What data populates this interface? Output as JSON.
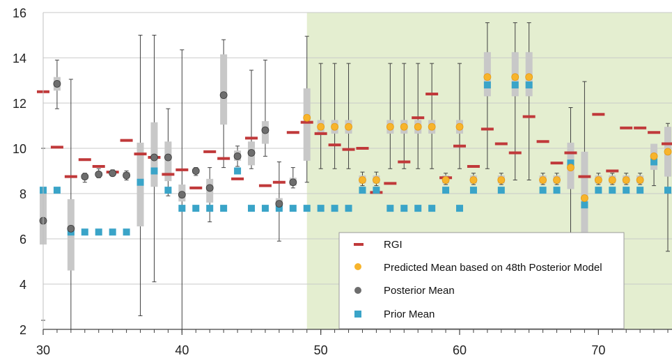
{
  "chart_data": {
    "type": "scatter",
    "xlim": [
      30,
      75.3
    ],
    "ylim": [
      2,
      16
    ],
    "x_ticks": [
      "30",
      "40",
      "50",
      "60",
      "70"
    ],
    "y_ticks": [
      "2",
      "4",
      "6",
      "8",
      "10",
      "12",
      "14",
      "16"
    ],
    "grid": "horizontal",
    "shaded_region": {
      "x_from": 49,
      "x_to": 75.3,
      "color": "#e4eed0"
    },
    "legend_position": "bottom-right",
    "colors": {
      "rgi": "#c0393a",
      "predicted": "#f7b42c",
      "posterior": "#6d6d6d",
      "prior": "#3aa4c8",
      "box": "#c8c8c8",
      "whisker": "#404040"
    },
    "legend": [
      {
        "label": "RGI",
        "marker": "dash",
        "color": "#c0393a"
      },
      {
        "label": "Predicted Mean based on 48th Posterior Model",
        "marker": "circle",
        "color": "#f7b42c"
      },
      {
        "label": "Posterior Mean",
        "marker": "circle",
        "color": "#6d6d6d"
      },
      {
        "label": "Prior Mean",
        "marker": "square",
        "color": "#3aa4c8"
      }
    ],
    "rgi": [
      [
        30,
        12.5
      ],
      [
        31,
        10.05
      ],
      [
        32,
        8.75
      ],
      [
        33,
        9.5
      ],
      [
        34,
        9.2
      ],
      [
        35,
        8.95
      ],
      [
        36,
        10.35
      ],
      [
        37,
        9.75
      ],
      [
        38,
        9.6
      ],
      [
        39,
        8.85
      ],
      [
        40,
        9.05
      ],
      [
        41,
        8.25
      ],
      [
        42,
        9.85
      ],
      [
        43,
        9.55
      ],
      [
        44,
        8.65
      ],
      [
        45,
        10.45
      ],
      [
        46,
        8.35
      ],
      [
        47,
        8.5
      ],
      [
        48,
        10.7
      ],
      [
        49,
        11.15
      ],
      [
        50,
        10.65
      ],
      [
        51,
        10.15
      ],
      [
        52,
        9.95
      ],
      [
        53,
        10.0
      ],
      [
        54,
        8.05
      ],
      [
        55,
        8.45
      ],
      [
        56,
        9.4
      ],
      [
        57,
        11.35
      ],
      [
        58,
        12.4
      ],
      [
        59,
        8.7
      ],
      [
        60,
        10.1
      ],
      [
        61,
        9.2
      ],
      [
        62,
        10.85
      ],
      [
        63,
        10.2
      ],
      [
        64,
        9.8
      ],
      [
        65,
        11.4
      ],
      [
        66,
        10.3
      ],
      [
        67,
        9.35
      ],
      [
        68,
        9.8
      ],
      [
        69,
        8.75
      ],
      [
        70,
        11.5
      ],
      [
        71,
        9.0
      ],
      [
        72,
        10.9
      ],
      [
        73,
        10.9
      ],
      [
        74,
        10.7
      ],
      [
        75,
        10.2
      ]
    ],
    "prior_mean": [
      [
        30,
        8.15
      ],
      [
        31,
        8.15
      ],
      [
        32,
        6.3
      ],
      [
        33,
        6.3
      ],
      [
        34,
        6.3
      ],
      [
        35,
        6.3
      ],
      [
        36,
        6.3
      ],
      [
        37,
        8.5
      ],
      [
        38,
        9.0
      ],
      [
        39,
        8.15
      ],
      [
        40,
        7.35
      ],
      [
        41,
        7.35
      ],
      [
        42,
        7.35
      ],
      [
        43,
        7.35
      ],
      [
        44,
        9.0
      ],
      [
        45,
        7.35
      ],
      [
        46,
        7.35
      ],
      [
        47,
        7.35
      ],
      [
        48,
        7.35
      ],
      [
        49,
        7.35
      ],
      [
        50,
        7.35
      ],
      [
        51,
        7.35
      ],
      [
        52,
        7.35
      ],
      [
        53,
        8.15
      ],
      [
        54,
        8.15
      ],
      [
        55,
        7.35
      ],
      [
        56,
        7.35
      ],
      [
        57,
        7.35
      ],
      [
        58,
        7.35
      ],
      [
        59,
        8.15
      ],
      [
        60,
        7.35
      ],
      [
        61,
        8.15
      ],
      [
        62,
        12.8
      ],
      [
        63,
        8.15
      ],
      [
        64,
        12.8
      ],
      [
        65,
        12.8
      ],
      [
        66,
        8.15
      ],
      [
        67,
        8.15
      ],
      [
        68,
        9.35
      ],
      [
        69,
        7.5
      ],
      [
        70,
        8.15
      ],
      [
        71,
        8.15
      ],
      [
        72,
        8.15
      ],
      [
        73,
        8.15
      ],
      [
        74,
        9.4
      ],
      [
        75,
        8.15
      ]
    ],
    "posterior_mean": [
      [
        30,
        6.8
      ],
      [
        31,
        12.85
      ],
      [
        32,
        6.45
      ],
      [
        33,
        8.75
      ],
      [
        34,
        8.85
      ],
      [
        35,
        8.9
      ],
      [
        36,
        8.8
      ],
      [
        38,
        9.6
      ],
      [
        39,
        9.6
      ],
      [
        40,
        7.95
      ],
      [
        41,
        9.0
      ],
      [
        42,
        8.25
      ],
      [
        43,
        12.35
      ],
      [
        44,
        9.65
      ],
      [
        45,
        9.8
      ],
      [
        46,
        10.8
      ],
      [
        47,
        7.55
      ],
      [
        48,
        8.5
      ]
    ],
    "predicted_mean": [
      [
        49,
        11.35
      ],
      [
        50,
        10.95
      ],
      [
        51,
        10.95
      ],
      [
        52,
        10.95
      ],
      [
        53,
        8.6
      ],
      [
        54,
        8.6
      ],
      [
        55,
        10.95
      ],
      [
        56,
        10.95
      ],
      [
        57,
        10.95
      ],
      [
        58,
        10.95
      ],
      [
        59,
        8.6
      ],
      [
        60,
        10.95
      ],
      [
        61,
        8.6
      ],
      [
        62,
        13.15
      ],
      [
        63,
        8.6
      ],
      [
        64,
        13.15
      ],
      [
        65,
        13.15
      ],
      [
        66,
        8.6
      ],
      [
        67,
        8.6
      ],
      [
        68,
        9.15
      ],
      [
        69,
        7.8
      ],
      [
        70,
        8.6
      ],
      [
        71,
        8.6
      ],
      [
        72,
        8.6
      ],
      [
        73,
        8.6
      ],
      [
        74,
        9.65
      ],
      [
        75,
        9.85
      ]
    ],
    "whiskers": [
      [
        30,
        2.4,
        10.0
      ],
      [
        31,
        11.75,
        13.9
      ],
      [
        32,
        2.0,
        13.05
      ],
      [
        33,
        8.5,
        8.9
      ],
      [
        34,
        8.7,
        9.1
      ],
      [
        35,
        8.8,
        9.05
      ],
      [
        36,
        8.6,
        9.0
      ],
      [
        37,
        2.6,
        15.0
      ],
      [
        38,
        4.1,
        15.0
      ],
      [
        39,
        7.9,
        11.75
      ],
      [
        40,
        2.0,
        14.35
      ],
      [
        41,
        8.8,
        9.15
      ],
      [
        42,
        6.75,
        9.15
      ],
      [
        43,
        9.15,
        14.8
      ],
      [
        44,
        9.2,
        10.1
      ],
      [
        45,
        9.1,
        13.45
      ],
      [
        46,
        9.65,
        13.9
      ],
      [
        47,
        5.9,
        9.4
      ],
      [
        48,
        8.25,
        9.15
      ],
      [
        49,
        8.5,
        14.95
      ],
      [
        50,
        9.1,
        13.75
      ],
      [
        51,
        9.1,
        13.75
      ],
      [
        52,
        9.1,
        13.75
      ],
      [
        53,
        8.35,
        8.95
      ],
      [
        54,
        8.35,
        8.95
      ],
      [
        55,
        9.1,
        13.75
      ],
      [
        56,
        9.1,
        13.75
      ],
      [
        57,
        9.1,
        13.75
      ],
      [
        58,
        9.1,
        13.75
      ],
      [
        59,
        8.4,
        8.9
      ],
      [
        60,
        9.1,
        13.75
      ],
      [
        61,
        8.4,
        8.9
      ],
      [
        62,
        9.1,
        15.55
      ],
      [
        63,
        8.4,
        8.9
      ],
      [
        64,
        8.6,
        15.55
      ],
      [
        65,
        8.6,
        15.55
      ],
      [
        66,
        8.4,
        8.9
      ],
      [
        67,
        8.4,
        8.9
      ],
      [
        68,
        5.0,
        11.8
      ],
      [
        69,
        4.0,
        12.95
      ],
      [
        70,
        8.4,
        8.9
      ],
      [
        71,
        8.4,
        8.9
      ],
      [
        72,
        8.4,
        8.9
      ],
      [
        73,
        8.4,
        8.9
      ],
      [
        74,
        8.35,
        10.15
      ],
      [
        75,
        5.45,
        11.1
      ]
    ],
    "boxes": [
      [
        30,
        5.75,
        8.0
      ],
      [
        31,
        12.55,
        13.15
      ],
      [
        32,
        4.6,
        7.75
      ],
      [
        33,
        8.65,
        8.85
      ],
      [
        34,
        8.8,
        8.95
      ],
      [
        35,
        8.85,
        9.0
      ],
      [
        36,
        8.7,
        8.95
      ],
      [
        37,
        6.55,
        10.25
      ],
      [
        38,
        8.3,
        11.15
      ],
      [
        39,
        8.55,
        10.3
      ],
      [
        40,
        7.65,
        8.4
      ],
      [
        41,
        8.9,
        9.1
      ],
      [
        42,
        7.6,
        8.65
      ],
      [
        43,
        11.05,
        14.15
      ],
      [
        44,
        9.45,
        9.9
      ],
      [
        45,
        9.25,
        10.3
      ],
      [
        46,
        10.2,
        11.2
      ],
      [
        47,
        7.3,
        7.8
      ],
      [
        48,
        8.35,
        8.7
      ],
      [
        49,
        9.45,
        12.65
      ],
      [
        50,
        10.65,
        11.25
      ],
      [
        51,
        10.65,
        11.25
      ],
      [
        52,
        10.65,
        11.25
      ],
      [
        53,
        8.45,
        8.8
      ],
      [
        54,
        8.45,
        8.8
      ],
      [
        55,
        10.65,
        11.25
      ],
      [
        56,
        10.65,
        11.25
      ],
      [
        57,
        10.65,
        11.25
      ],
      [
        58,
        10.65,
        11.25
      ],
      [
        59,
        8.45,
        8.8
      ],
      [
        60,
        10.65,
        11.25
      ],
      [
        61,
        8.45,
        8.8
      ],
      [
        62,
        12.3,
        14.25
      ],
      [
        63,
        8.45,
        8.8
      ],
      [
        64,
        12.3,
        14.25
      ],
      [
        65,
        12.3,
        14.25
      ],
      [
        66,
        8.45,
        8.8
      ],
      [
        67,
        8.45,
        8.8
      ],
      [
        68,
        8.2,
        10.25
      ],
      [
        69,
        6.2,
        9.85
      ],
      [
        70,
        8.45,
        8.8
      ],
      [
        71,
        8.45,
        8.8
      ],
      [
        72,
        8.45,
        8.8
      ],
      [
        73,
        8.45,
        8.8
      ],
      [
        74,
        9.05,
        10.2
      ],
      [
        75,
        8.75,
        10.95
      ]
    ]
  }
}
